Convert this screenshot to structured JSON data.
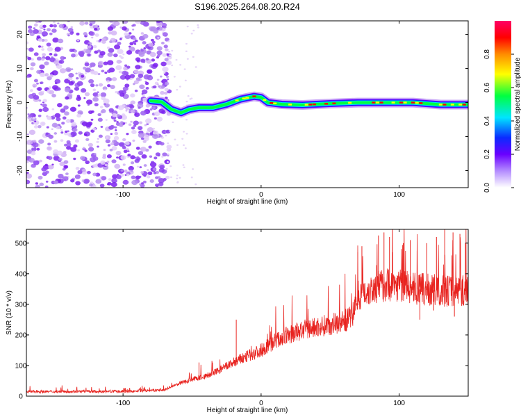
{
  "title": "S196.2025.264.08.20.R24",
  "chart_data": [
    {
      "type": "heatmap",
      "name": "spectrogram",
      "xlabel": "Height of straight line (km)",
      "ylabel": "Frequency (Hz)",
      "xlim": [
        -170,
        150
      ],
      "ylim": [
        -25,
        24
      ],
      "xticks": [
        -100,
        0,
        100
      ],
      "yticks": [
        -20,
        -10,
        0,
        10,
        20
      ],
      "colorbar": {
        "label": "Normalized spectral amplitude",
        "range": [
          0,
          1
        ],
        "ticks": [
          0.0,
          0.2,
          0.4,
          0.6,
          0.8
        ]
      },
      "noise_region_x": [
        -170,
        -70
      ],
      "ridge": [
        {
          "x": -80,
          "f": 0.5
        },
        {
          "x": -72,
          "f": 0.2
        },
        {
          "x": -65,
          "f": -2
        },
        {
          "x": -58,
          "f": -3
        },
        {
          "x": -52,
          "f": -2
        },
        {
          "x": -45,
          "f": -1.5
        },
        {
          "x": -35,
          "f": -1.5
        },
        {
          "x": -25,
          "f": -0.5
        },
        {
          "x": -15,
          "f": 1
        },
        {
          "x": -5,
          "f": 1.8
        },
        {
          "x": 0,
          "f": 1.5
        },
        {
          "x": 5,
          "f": 0
        },
        {
          "x": 15,
          "f": -0.5
        },
        {
          "x": 30,
          "f": -0.7
        },
        {
          "x": 50,
          "f": -0.3
        },
        {
          "x": 70,
          "f": 0
        },
        {
          "x": 90,
          "f": 0
        },
        {
          "x": 110,
          "f": 0
        },
        {
          "x": 130,
          "f": -0.6
        },
        {
          "x": 150,
          "f": -0.6
        }
      ]
    },
    {
      "type": "line",
      "name": "snr",
      "xlabel": "Height of straight line (km)",
      "ylabel": "SNR (10 * v/v)",
      "xlim": [
        -170,
        150
      ],
      "ylim": [
        0,
        545
      ],
      "xticks": [
        -100,
        0,
        100
      ],
      "yticks": [
        0,
        100,
        200,
        300,
        400,
        500
      ],
      "color": "#e8231f",
      "trend": [
        {
          "x": -170,
          "y": 15
        },
        {
          "x": -100,
          "y": 15
        },
        {
          "x": -70,
          "y": 20
        },
        {
          "x": -60,
          "y": 40
        },
        {
          "x": -50,
          "y": 55
        },
        {
          "x": -40,
          "y": 65
        },
        {
          "x": -30,
          "y": 85
        },
        {
          "x": -20,
          "y": 110
        },
        {
          "x": -10,
          "y": 130
        },
        {
          "x": 0,
          "y": 150
        },
        {
          "x": 10,
          "y": 180
        },
        {
          "x": 20,
          "y": 200
        },
        {
          "x": 30,
          "y": 215
        },
        {
          "x": 40,
          "y": 225
        },
        {
          "x": 50,
          "y": 235
        },
        {
          "x": 60,
          "y": 245
        },
        {
          "x": 66,
          "y": 260
        },
        {
          "x": 70,
          "y": 330
        },
        {
          "x": 80,
          "y": 350
        },
        {
          "x": 90,
          "y": 365
        },
        {
          "x": 100,
          "y": 365
        },
        {
          "x": 110,
          "y": 350
        },
        {
          "x": 130,
          "y": 345
        },
        {
          "x": 150,
          "y": 345
        }
      ],
      "spikes": [
        {
          "x": -45,
          "y": 110
        },
        {
          "x": -18,
          "y": 250
        },
        {
          "x": 70,
          "y": 470
        },
        {
          "x": 73,
          "y": 490
        },
        {
          "x": 85,
          "y": 525
        },
        {
          "x": 89,
          "y": 535
        },
        {
          "x": 93,
          "y": 520
        },
        {
          "x": 103,
          "y": 500
        },
        {
          "x": 108,
          "y": 510
        },
        {
          "x": 113,
          "y": 475
        },
        {
          "x": 120,
          "y": 500
        },
        {
          "x": 127,
          "y": 520
        },
        {
          "x": 133,
          "y": 545
        },
        {
          "x": 139,
          "y": 535
        },
        {
          "x": 144,
          "y": 530
        },
        {
          "x": 148,
          "y": 500
        },
        {
          "x": 95,
          "y": 470
        },
        {
          "x": 115,
          "y": 250
        },
        {
          "x": 125,
          "y": 280
        },
        {
          "x": 140,
          "y": 260
        }
      ]
    }
  ]
}
